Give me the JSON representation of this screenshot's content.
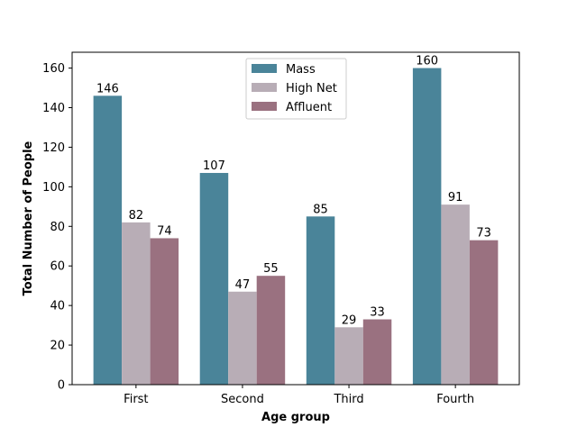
{
  "chart_data": {
    "type": "bar",
    "title": "",
    "xlabel": "Age group",
    "ylabel": "Total Number of People",
    "categories": [
      "First",
      "Second",
      "Third",
      "Fourth"
    ],
    "series": [
      {
        "name": "Mass",
        "color": "#4a8499",
        "values": [
          146,
          107,
          85,
          160
        ]
      },
      {
        "name": "High Net",
        "color": "#b8adb6",
        "values": [
          82,
          47,
          29,
          91
        ]
      },
      {
        "name": "Affluent",
        "color": "#9a7180",
        "values": [
          74,
          55,
          33,
          73
        ]
      }
    ],
    "ylim": [
      0,
      168
    ],
    "yticks": [
      0,
      20,
      40,
      60,
      80,
      100,
      120,
      140,
      160
    ],
    "grid": false,
    "legend_position": "top-center"
  }
}
